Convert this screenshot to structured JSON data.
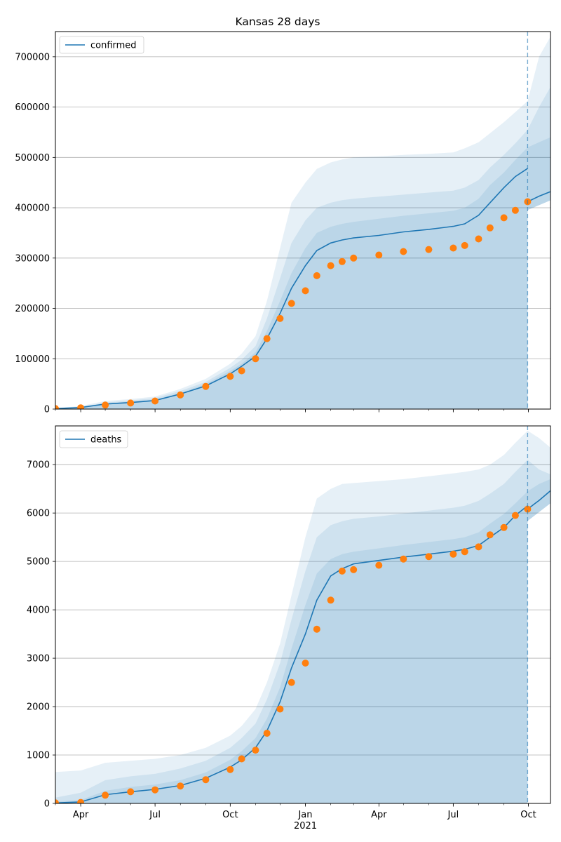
{
  "title": "Kansas 28 days",
  "colors": {
    "model": "#1f77b4",
    "observed": "#ff7f0e",
    "band": "#1f77b4",
    "grid": "#b0b0b0",
    "vline": "#1f77b4"
  },
  "x_axis": {
    "start": "2020-03-01",
    "end": "2021-10-28",
    "ticks": [
      {
        "date": "2020-04-01",
        "label": "Apr"
      },
      {
        "date": "2020-07-01",
        "label": "Jul"
      },
      {
        "date": "2020-10-01",
        "label": "Oct"
      },
      {
        "date": "2021-01-01",
        "label": "Jan"
      },
      {
        "date": "2021-04-01",
        "label": "Apr"
      },
      {
        "date": "2021-07-01",
        "label": "Jul"
      },
      {
        "date": "2021-10-01",
        "label": "Oct"
      }
    ],
    "year_label": {
      "date": "2021-01-01",
      "label": "2021"
    },
    "forecast_start": "2021-09-30"
  },
  "chart_data": [
    {
      "type": "line",
      "legend_label": "confirmed",
      "legend_position": "upper-left",
      "ylim": [
        0,
        750000
      ],
      "yticks": [
        0,
        100000,
        200000,
        300000,
        400000,
        500000,
        600000,
        700000
      ],
      "grid": "y",
      "model": {
        "x": [
          "2020-03-01",
          "2020-04-01",
          "2020-05-01",
          "2020-06-01",
          "2020-07-01",
          "2020-08-01",
          "2020-09-01",
          "2020-10-01",
          "2020-10-15",
          "2020-11-01",
          "2020-11-15",
          "2020-12-01",
          "2020-12-15",
          "2021-01-01",
          "2021-01-15",
          "2021-02-01",
          "2021-02-15",
          "2021-03-01",
          "2021-04-01",
          "2021-05-01",
          "2021-06-01",
          "2021-07-01",
          "2021-07-15",
          "2021-08-01",
          "2021-08-15",
          "2021-09-01",
          "2021-09-15",
          "2021-09-30"
        ],
        "y": [
          1000,
          3000,
          10000,
          13000,
          17000,
          30000,
          46000,
          70000,
          85000,
          105000,
          140000,
          190000,
          240000,
          285000,
          315000,
          330000,
          336000,
          340000,
          345000,
          352000,
          357000,
          363000,
          368000,
          385000,
          410000,
          440000,
          462000,
          478000
        ]
      },
      "observed": {
        "x": [
          "2020-03-01",
          "2020-04-01",
          "2020-05-01",
          "2020-06-01",
          "2020-07-01",
          "2020-08-01",
          "2020-09-01",
          "2020-10-01",
          "2020-10-15",
          "2020-11-01",
          "2020-11-15",
          "2020-12-01",
          "2020-12-15",
          "2021-01-01",
          "2021-01-15",
          "2021-02-01",
          "2021-02-15",
          "2021-03-01",
          "2021-04-01",
          "2021-05-01",
          "2021-06-01",
          "2021-07-01",
          "2021-07-15",
          "2021-08-01",
          "2021-08-15",
          "2021-09-01",
          "2021-09-15",
          "2021-09-30"
        ],
        "y": [
          1000,
          2500,
          8000,
          12000,
          16000,
          28000,
          45000,
          65000,
          76000,
          100000,
          140000,
          180000,
          210000,
          235000,
          265000,
          285000,
          293000,
          300000,
          306000,
          313000,
          317000,
          320000,
          325000,
          338000,
          360000,
          380000,
          395000,
          412000
        ]
      },
      "forecast": {
        "x": [
          "2021-09-30",
          "2021-10-14",
          "2021-10-28"
        ],
        "y": [
          412000,
          423000,
          432000
        ]
      },
      "bands": [
        {
          "lower": [
            0,
            0,
            0,
            0,
            0,
            0,
            0,
            0,
            0,
            0,
            0,
            0,
            0,
            0,
            0,
            0,
            0,
            0,
            0,
            0,
            0,
            0,
            0,
            0,
            0,
            0,
            0,
            0
          ],
          "upper": [
            2000,
            6000,
            16000,
            20000,
            25000,
            40000,
            60000,
            90000,
            110000,
            145000,
            215000,
            320000,
            410000,
            450000,
            477000,
            490000,
            496000,
            500000,
            502000,
            505000,
            507000,
            510000,
            518000,
            530000,
            548000,
            570000,
            590000,
            612000
          ],
          "forecast_upper": [
            612000,
            700000,
            740000
          ]
        },
        {
          "lower": [
            0,
            0,
            0,
            0,
            0,
            0,
            0,
            0,
            0,
            0,
            0,
            0,
            0,
            0,
            0,
            0,
            0,
            0,
            0,
            0,
            0,
            0,
            0,
            0,
            0,
            0,
            0,
            0
          ],
          "upper": [
            1000,
            4500,
            13000,
            17000,
            22000,
            36000,
            54000,
            82000,
            98000,
            125000,
            180000,
            260000,
            330000,
            375000,
            400000,
            410000,
            415000,
            418000,
            422000,
            426000,
            430000,
            434000,
            440000,
            455000,
            480000,
            505000,
            528000,
            555000
          ],
          "forecast_upper": [
            555000,
            600000,
            640000
          ]
        },
        {
          "lower": [
            0,
            0,
            0,
            0,
            0,
            0,
            0,
            0,
            0,
            0,
            0,
            0,
            0,
            0,
            0,
            0,
            0,
            0,
            0,
            0,
            0,
            0,
            0,
            0,
            0,
            0,
            0,
            0
          ],
          "upper": [
            1000,
            3500,
            11000,
            15000,
            19000,
            32000,
            50000,
            76000,
            90000,
            113000,
            155000,
            215000,
            270000,
            320000,
            350000,
            362000,
            368000,
            372000,
            378000,
            384000,
            389000,
            394000,
            400000,
            418000,
            445000,
            470000,
            495000,
            520000
          ],
          "forecast_upper": [
            520000,
            530000,
            540000
          ]
        }
      ]
    },
    {
      "type": "line",
      "legend_label": "deaths",
      "legend_position": "upper-left",
      "ylim": [
        0,
        7800
      ],
      "yticks": [
        0,
        1000,
        2000,
        3000,
        4000,
        5000,
        6000,
        7000
      ],
      "grid": "y",
      "model": {
        "x": [
          "2020-03-01",
          "2020-04-01",
          "2020-05-01",
          "2020-06-01",
          "2020-07-01",
          "2020-08-01",
          "2020-09-01",
          "2020-10-01",
          "2020-10-15",
          "2020-11-01",
          "2020-11-15",
          "2020-12-01",
          "2020-12-15",
          "2021-01-01",
          "2021-01-15",
          "2021-02-01",
          "2021-02-15",
          "2021-03-01",
          "2021-04-01",
          "2021-05-01",
          "2021-06-01",
          "2021-07-01",
          "2021-07-15",
          "2021-08-01",
          "2021-08-15",
          "2021-09-01",
          "2021-09-15",
          "2021-09-30"
        ],
        "y": [
          10,
          30,
          180,
          240,
          290,
          370,
          520,
          750,
          900,
          1150,
          1500,
          2100,
          2800,
          3500,
          4200,
          4700,
          4850,
          4950,
          5020,
          5090,
          5150,
          5210,
          5250,
          5330,
          5500,
          5700,
          5950,
          6150
        ]
      },
      "observed": {
        "x": [
          "2020-03-01",
          "2020-04-01",
          "2020-05-01",
          "2020-06-01",
          "2020-07-01",
          "2020-08-01",
          "2020-09-01",
          "2020-10-01",
          "2020-10-15",
          "2020-11-01",
          "2020-11-15",
          "2020-12-01",
          "2020-12-15",
          "2021-01-01",
          "2021-01-15",
          "2021-02-01",
          "2021-02-15",
          "2021-03-01",
          "2021-04-01",
          "2021-05-01",
          "2021-06-01",
          "2021-07-01",
          "2021-07-15",
          "2021-08-01",
          "2021-08-15",
          "2021-09-01",
          "2021-09-15",
          "2021-09-30"
        ],
        "y": [
          10,
          20,
          170,
          240,
          280,
          360,
          490,
          700,
          920,
          1100,
          1450,
          1950,
          2500,
          2900,
          3600,
          4200,
          4800,
          4830,
          4920,
          5050,
          5100,
          5150,
          5200,
          5300,
          5550,
          5700,
          5950,
          6080
        ]
      },
      "forecast": {
        "x": [
          "2021-09-30",
          "2021-10-14",
          "2021-10-28"
        ],
        "y": [
          6080,
          6260,
          6460
        ]
      },
      "bands": [
        {
          "lower": [
            0,
            0,
            0,
            0,
            0,
            0,
            0,
            0,
            0,
            0,
            0,
            0,
            0,
            0,
            0,
            0,
            0,
            0,
            0,
            0,
            0,
            0,
            0,
            0,
            0,
            0,
            0,
            0
          ],
          "upper": [
            650,
            680,
            840,
            880,
            920,
            1000,
            1150,
            1400,
            1600,
            1950,
            2500,
            3300,
            4300,
            5500,
            6300,
            6500,
            6600,
            6620,
            6660,
            6700,
            6760,
            6820,
            6850,
            6900,
            7000,
            7200,
            7450,
            7700
          ],
          "forecast_upper": [
            7700,
            7550,
            7350
          ]
        },
        {
          "lower": [
            0,
            0,
            0,
            0,
            0,
            0,
            0,
            0,
            0,
            0,
            0,
            0,
            0,
            0,
            0,
            0,
            0,
            0,
            0,
            0,
            0,
            0,
            0,
            0,
            0,
            0,
            0,
            0
          ],
          "upper": [
            120,
            220,
            480,
            560,
            610,
            720,
            880,
            1150,
            1350,
            1650,
            2150,
            2900,
            3800,
            4800,
            5500,
            5750,
            5830,
            5880,
            5930,
            5990,
            6050,
            6110,
            6150,
            6250,
            6400,
            6600,
            6850,
            7100
          ],
          "forecast_upper": [
            7100,
            6900,
            6800
          ]
        },
        {
          "lower": [
            0,
            0,
            0,
            0,
            0,
            0,
            0,
            0,
            0,
            0,
            0,
            0,
            0,
            0,
            0,
            0,
            0,
            0,
            0,
            0,
            0,
            0,
            0,
            0,
            0,
            0,
            0,
            0
          ],
          "upper": [
            40,
            70,
            260,
            340,
            390,
            480,
            640,
            900,
            1080,
            1350,
            1750,
            2400,
            3200,
            4100,
            4750,
            5050,
            5150,
            5200,
            5270,
            5340,
            5400,
            5460,
            5500,
            5600,
            5780,
            5980,
            6200,
            6450
          ],
          "forecast_upper": [
            6450,
            6600,
            6700
          ]
        }
      ]
    }
  ]
}
